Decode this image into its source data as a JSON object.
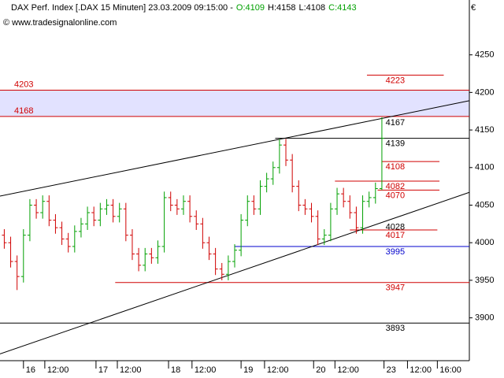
{
  "chart_data": {
    "type": "ohlc",
    "title": "DAX Perf. Index [.DAX  15 Minuten] 23.03.2009 09:15:00 -",
    "quote": [
      {
        "text": "O:4109",
        "color": "#00a000"
      },
      {
        "text": "H:4158",
        "color": "#000000"
      },
      {
        "text": "L:4108",
        "color": "#000000"
      },
      {
        "text": "C:4143",
        "color": "#00a000"
      }
    ],
    "source": "© www.tradesignalonline.com",
    "currency": "€",
    "up_color": "#00a000",
    "down_color": "#d00000",
    "xlim": [
      0,
      220
    ],
    "xticks": [
      {
        "value": 11,
        "label": "16"
      },
      {
        "value": 21,
        "label": "12:00"
      },
      {
        "value": 45,
        "label": "17"
      },
      {
        "value": 55,
        "label": "12:00"
      },
      {
        "value": 79,
        "label": "18"
      },
      {
        "value": 90,
        "label": "12:00"
      },
      {
        "value": 113,
        "label": "19"
      },
      {
        "value": 124,
        "label": "12:00"
      },
      {
        "value": 147,
        "label": "20"
      },
      {
        "value": 157,
        "label": "12:00"
      },
      {
        "value": 180,
        "label": "23"
      },
      {
        "value": 191,
        "label": "12:00"
      },
      {
        "value": 205,
        "label": "16:00"
      }
    ],
    "ylim": [
      3843,
      4323
    ],
    "yticks": [
      3900,
      3950,
      4000,
      4050,
      4100,
      4150,
      4200,
      4250
    ],
    "x": [
      2,
      5,
      8,
      11,
      14,
      17,
      20,
      23,
      26,
      29,
      32,
      35,
      38,
      41,
      44,
      47,
      50,
      53,
      56,
      59,
      62,
      65,
      68,
      71,
      74,
      77,
      80,
      83,
      86,
      89,
      92,
      95,
      98,
      101,
      104,
      107,
      110,
      113,
      116,
      119,
      122,
      125,
      128,
      131,
      134,
      137,
      140,
      143,
      146,
      149,
      152,
      155,
      158,
      161,
      164,
      167,
      170,
      173,
      176,
      179
    ],
    "open": [
      4010,
      4000,
      3975,
      3955,
      4010,
      4050,
      4040,
      4055,
      4030,
      4020,
      4005,
      3995,
      4015,
      4025,
      4040,
      4030,
      4045,
      4050,
      4035,
      4045,
      4010,
      3985,
      3970,
      3985,
      3980,
      3995,
      4060,
      4050,
      4045,
      4055,
      4035,
      4025,
      4000,
      3985,
      3965,
      3958,
      3975,
      3990,
      4030,
      4055,
      4045,
      4075,
      4085,
      4100,
      4130,
      4110,
      4075,
      4050,
      4045,
      4035,
      4005,
      4010,
      4045,
      4065,
      4055,
      4040,
      4020,
      4055,
      4060,
      4072
    ],
    "high": [
      4018,
      4008,
      3983,
      4018,
      4058,
      4058,
      4063,
      4063,
      4038,
      4028,
      4013,
      4023,
      4033,
      4048,
      4048,
      4053,
      4058,
      4058,
      4053,
      4053,
      4018,
      3993,
      3993,
      3993,
      4003,
      4068,
      4068,
      4058,
      4063,
      4063,
      4043,
      4033,
      4008,
      3993,
      3973,
      3983,
      3998,
      4038,
      4063,
      4063,
      4083,
      4093,
      4108,
      4138,
      4138,
      4118,
      4083,
      4058,
      4053,
      4043,
      4018,
      4053,
      4073,
      4073,
      4063,
      4048,
      4063,
      4068,
      4080,
      4167
    ],
    "low": [
      3992,
      3967,
      3937,
      3947,
      4002,
      4032,
      4032,
      4022,
      4012,
      3997,
      3987,
      3987,
      4007,
      4017,
      4022,
      4022,
      4037,
      4027,
      4027,
      4002,
      3977,
      3962,
      3962,
      3972,
      3972,
      3987,
      4042,
      4037,
      4037,
      4027,
      4017,
      3992,
      3977,
      3957,
      3950,
      3950,
      3967,
      3982,
      4022,
      4037,
      4037,
      4067,
      4077,
      4092,
      4102,
      4067,
      4042,
      4037,
      4027,
      3997,
      3997,
      4002,
      4037,
      4047,
      4032,
      4012,
      4012,
      4047,
      4052,
      4070
    ],
    "close": [
      4000,
      3975,
      3955,
      4010,
      4050,
      4040,
      4055,
      4030,
      4020,
      4005,
      3995,
      4015,
      4025,
      4040,
      4030,
      4045,
      4050,
      4035,
      4045,
      4010,
      3985,
      3970,
      3985,
      3980,
      3995,
      4060,
      4050,
      4045,
      4055,
      4035,
      4025,
      4000,
      3985,
      3965,
      3958,
      3975,
      3990,
      4030,
      4055,
      4045,
      4075,
      4085,
      4100,
      4130,
      4110,
      4075,
      4050,
      4045,
      4035,
      4005,
      4010,
      4045,
      4065,
      4055,
      4040,
      4020,
      4055,
      4060,
      4072,
      4139
    ],
    "bands": [
      {
        "from": 4168,
        "to": 4203,
        "color": "#e2e2ff"
      }
    ],
    "trendlines": [
      {
        "x": [
          0,
          220
        ],
        "y": [
          4062,
          4189
        ]
      },
      {
        "x": [
          0,
          220
        ],
        "y": [
          3852,
          4067
        ]
      }
    ],
    "levels": [
      {
        "value": 4223,
        "color": "#d00000",
        "from": 172,
        "to": 208
      },
      {
        "value": 4203,
        "color": "#d00000",
        "from": 0,
        "to": 220,
        "left": true
      },
      {
        "value": 4168,
        "color": "#d00000",
        "from": 0,
        "to": 220,
        "left": true
      },
      {
        "value": 4167,
        "color": "#000000"
      },
      {
        "value": 4139,
        "color": "#000000",
        "from": 129,
        "to": 220
      },
      {
        "value": 4108,
        "color": "#d00000",
        "from": 179,
        "to": 206
      },
      {
        "value": 4082,
        "color": "#d00000",
        "from": 157,
        "to": 206
      },
      {
        "value": 4070,
        "color": "#d00000",
        "from": 177,
        "to": 206
      },
      {
        "value": 4028,
        "color": "#000000"
      },
      {
        "value": 4017,
        "color": "#d00000",
        "from": 164,
        "to": 205
      },
      {
        "value": 3995,
        "color": "#0000cc",
        "from": 110,
        "to": 220
      },
      {
        "value": 3947,
        "color": "#d00000",
        "from": 54,
        "to": 220
      },
      {
        "value": 3893,
        "color": "#000000",
        "from": 0,
        "to": 220
      }
    ]
  }
}
